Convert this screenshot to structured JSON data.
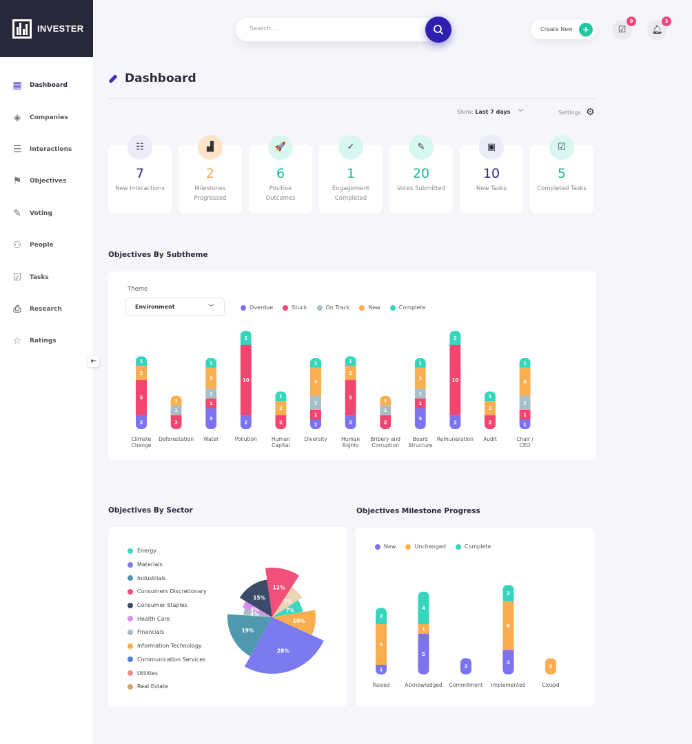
{
  "app": {
    "name": "INVESTER"
  },
  "sidebar": {
    "items": [
      {
        "label": "Dashboard",
        "icon": "grid-icon",
        "glyph": "▦"
      },
      {
        "label": "Companies",
        "icon": "layers-icon",
        "glyph": "◈"
      },
      {
        "label": "Interactions",
        "icon": "list-icon",
        "glyph": "☰"
      },
      {
        "label": "Objectives",
        "icon": "flag-icon",
        "glyph": "⚑"
      },
      {
        "label": "Voting",
        "icon": "vote-icon",
        "glyph": "✎"
      },
      {
        "label": "People",
        "icon": "people-icon",
        "glyph": "⚇"
      },
      {
        "label": "Tasks",
        "icon": "clipboard-check-icon",
        "glyph": "☑"
      },
      {
        "label": "Research",
        "icon": "research-icon",
        "glyph": "⎙"
      },
      {
        "label": "Ratings",
        "icon": "star-icon",
        "glyph": "☆"
      }
    ],
    "collapse_glyph": "⇤"
  },
  "header": {
    "search_placeholder": "Search...",
    "create_new": "Create New",
    "tasks_badge": "9",
    "notifications_badge": "3"
  },
  "page": {
    "title": "Dashboard",
    "show_label": "Show:",
    "show_value": "Last 7 days",
    "settings": "Settings"
  },
  "kpis": [
    {
      "value": "7",
      "label": "New Interactions",
      "color": "#2d2a7e",
      "bg": "#ecebfa",
      "glyph": "☷"
    },
    {
      "value": "2",
      "label": "Milestones Progressed",
      "color": "#f5a94a",
      "bg": "#fde3c8",
      "glyph": "▟"
    },
    {
      "value": "6",
      "label": "Positive Outcomes",
      "color": "#1ab99a",
      "bg": "#d8f7f0",
      "glyph": "🚀"
    },
    {
      "value": "1",
      "label": "Engagement Completed",
      "color": "#1ab99a",
      "bg": "#d8f7f0",
      "glyph": "✓"
    },
    {
      "value": "20",
      "label": "Votes Submitted",
      "color": "#1ab99a",
      "bg": "#d8f7f0",
      "glyph": "✎"
    },
    {
      "value": "10",
      "label": "New Tasks",
      "color": "#2d2a7e",
      "bg": "#ecebfa",
      "glyph": "▣"
    },
    {
      "value": "5",
      "label": "Completed Tasks",
      "color": "#1ab99a",
      "bg": "#d8f7f0",
      "glyph": "☑"
    }
  ],
  "subtheme": {
    "title": "Objectives By Subtheme",
    "theme_label": "Theme",
    "theme_value": "Environment"
  },
  "sector": {
    "title": "Objectives By Sector"
  },
  "milestone": {
    "title": "Objectives Milestone Progress"
  },
  "chart_data": [
    {
      "type": "bar",
      "stacked": true,
      "categories": [
        "Climate Change",
        "Deforestation",
        "Water",
        "Pollution",
        "Human Capital",
        "Diversity",
        "Human Rights",
        "Bribery and Corruption",
        "Board Structure",
        "Remuneration",
        "Audit",
        "Chair / CEO"
      ],
      "series": [
        {
          "name": "Overdue",
          "color": "#7b74ee",
          "values": [
            2,
            0,
            3,
            2,
            0,
            1,
            2,
            0,
            3,
            2,
            0,
            1
          ]
        },
        {
          "name": "Stuck",
          "color": "#f2456f",
          "values": [
            5,
            2,
            1,
            10,
            2,
            1,
            5,
            2,
            1,
            10,
            2,
            1
          ]
        },
        {
          "name": "On Track",
          "color": "#a9bfc8",
          "values": [
            0,
            1,
            1,
            0,
            0,
            2,
            0,
            1,
            1,
            0,
            0,
            2
          ]
        },
        {
          "name": "New",
          "color": "#fbae4f",
          "values": [
            2,
            1,
            3,
            0,
            2,
            4,
            2,
            1,
            3,
            0,
            2,
            4
          ]
        },
        {
          "name": "Complete",
          "color": "#35d6bb",
          "values": [
            1,
            0,
            1,
            2,
            1,
            1,
            1,
            0,
            1,
            2,
            1,
            1
          ]
        }
      ]
    },
    {
      "type": "pie",
      "variant": "polar-area",
      "legend": [
        {
          "name": "Energy",
          "color": "#3dd6c0"
        },
        {
          "name": "Materials",
          "color": "#7b7bef"
        },
        {
          "name": "Industrials",
          "color": "#4f98ad"
        },
        {
          "name": "Consumers Discretionary",
          "color": "#f05079"
        },
        {
          "name": "Consumer Staples",
          "color": "#3a4a68"
        },
        {
          "name": "Health Care",
          "color": "#d98bf0"
        },
        {
          "name": "Financials",
          "color": "#a9bcc8"
        },
        {
          "name": "Information Technology",
          "color": "#fbae4f"
        },
        {
          "name": "Communication Services",
          "color": "#4b80e0"
        },
        {
          "name": "Utilities",
          "color": "#f58a8a"
        },
        {
          "name": "Real Estate",
          "color": "#c9a86a"
        }
      ],
      "slices": [
        {
          "sector": "Consumers Discretionary",
          "value": 12,
          "label": "12%",
          "color": "#f05079"
        },
        {
          "sector": "Real Estate",
          "value": 7,
          "label": "7%",
          "color": "#ecd3b2"
        },
        {
          "sector": "Energy",
          "value": 7,
          "label": "7%",
          "color": "#3dd6c0"
        },
        {
          "sector": "Information Technology",
          "value": 10,
          "label": "10%",
          "color": "#fbae4f"
        },
        {
          "sector": "Materials",
          "value": 28,
          "label": "28%",
          "color": "#7b7bef"
        },
        {
          "sector": "Industrials",
          "value": 19,
          "label": "19%",
          "color": "#4f98ad"
        },
        {
          "sector": "Financials",
          "value": 4,
          "label": "4%",
          "color": "#a9bcc8"
        },
        {
          "sector": "Health Care",
          "value": 4,
          "label": "4%",
          "color": "#d98bf0"
        },
        {
          "sector": "Consumer Staples",
          "value": 15,
          "label": "15%",
          "color": "#3a4a68"
        }
      ]
    },
    {
      "type": "bar",
      "stacked": true,
      "categories": [
        "Raised",
        "Acknowledged",
        "Commitment",
        "Implemented",
        "Closed"
      ],
      "series": [
        {
          "name": "New",
          "color": "#7b74ee",
          "values": [
            1,
            5,
            2,
            3,
            0
          ]
        },
        {
          "name": "Unchanged",
          "color": "#fbae4f",
          "values": [
            5,
            1,
            0,
            6,
            2
          ]
        },
        {
          "name": "Complete",
          "color": "#35d6bb",
          "values": [
            2,
            4,
            0,
            2,
            0
          ]
        }
      ]
    }
  ]
}
